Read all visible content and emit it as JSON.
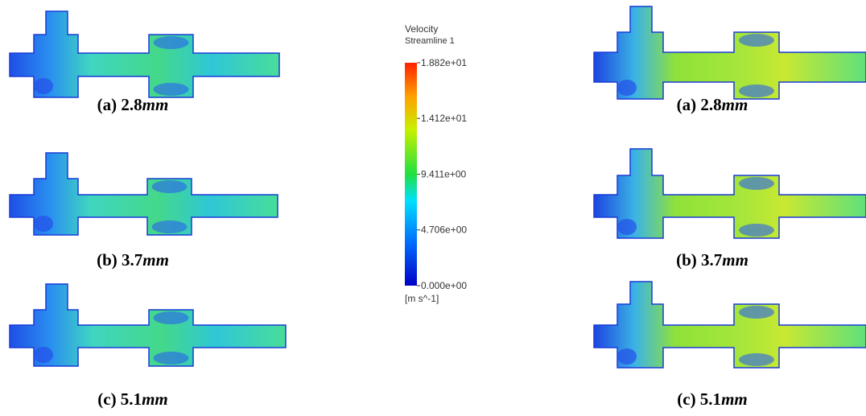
{
  "panels": [
    {
      "label": "(a) 2.8",
      "unit": "mm"
    },
    {
      "label": "(b) 3.7",
      "unit": "mm"
    },
    {
      "label": "(c) 5.1",
      "unit": "mm"
    },
    {
      "label": "(a) 2.8",
      "unit": "mm"
    },
    {
      "label": "(b) 3.7",
      "unit": "mm"
    },
    {
      "label": "(c) 5.1",
      "unit": "mm"
    }
  ],
  "colorbar": {
    "title": "Velocity",
    "subtitle": "Streamline 1",
    "ticks": [
      {
        "value": 18.82,
        "label": "1.882e+01"
      },
      {
        "value": 14.12,
        "label": "1.412e+01"
      },
      {
        "value": 9.411,
        "label": "9.411e+00"
      },
      {
        "value": 4.706,
        "label": "4.706e+00"
      },
      {
        "value": 0,
        "label": "0.000e+00"
      }
    ],
    "unit": "[m s^-1]"
  }
}
